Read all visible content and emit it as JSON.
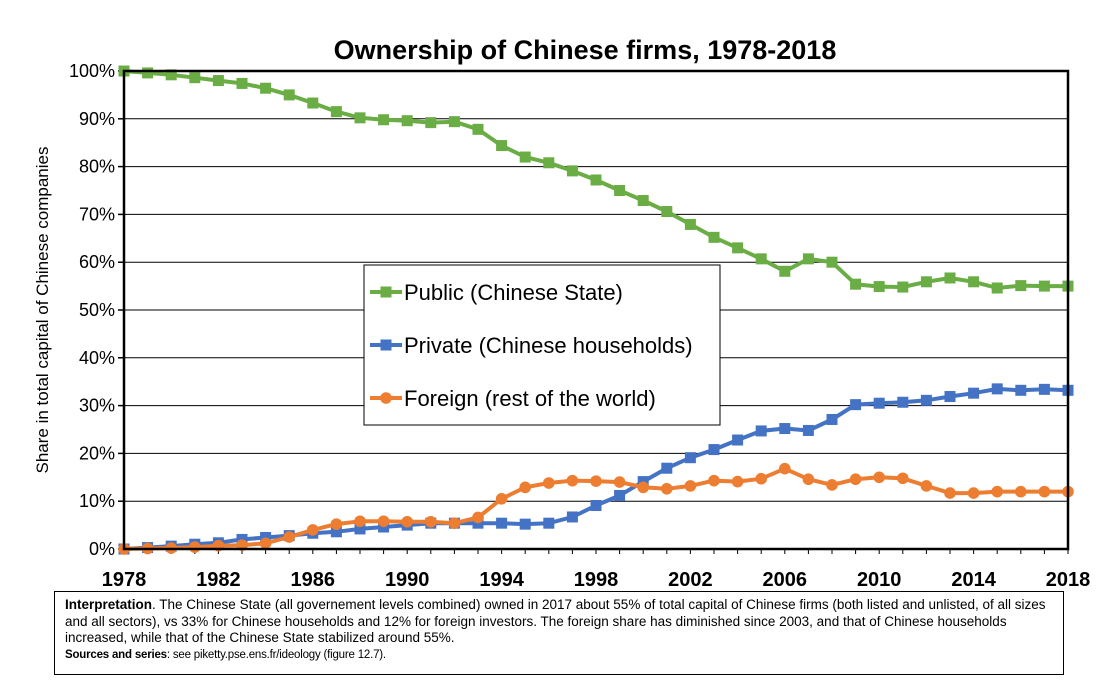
{
  "chart_data": {
    "type": "line",
    "title": "Ownership of Chinese firms, 1978-2018",
    "ylabel": "Share in total capital of Chinese companies",
    "xlabel": "",
    "x": [
      1978,
      1979,
      1980,
      1981,
      1982,
      1983,
      1984,
      1985,
      1986,
      1987,
      1988,
      1989,
      1990,
      1991,
      1992,
      1993,
      1994,
      1995,
      1996,
      1997,
      1998,
      1999,
      2000,
      2001,
      2002,
      2003,
      2004,
      2005,
      2006,
      2007,
      2008,
      2009,
      2010,
      2011,
      2012,
      2013,
      2014,
      2015,
      2016,
      2017,
      2018
    ],
    "xticks": [
      "1978",
      "1982",
      "1986",
      "1990",
      "1994",
      "1998",
      "2002",
      "2006",
      "2010",
      "2014",
      "2018"
    ],
    "yticks": [
      "0%",
      "10%",
      "20%",
      "30%",
      "40%",
      "50%",
      "60%",
      "70%",
      "80%",
      "90%",
      "100%"
    ],
    "xlim": [
      1978,
      2018
    ],
    "ylim": [
      0,
      100
    ],
    "grid": "horizontal",
    "legend_position": "center",
    "series": [
      {
        "name": "Public (Chinese State)",
        "color": "#6aad45",
        "marker": "square",
        "values": [
          100,
          99.6,
          99.2,
          98.6,
          98,
          97.4,
          96.4,
          95,
          93.3,
          91.5,
          90.2,
          89.8,
          89.6,
          89.2,
          89.4,
          87.8,
          84.4,
          82,
          80.8,
          79.1,
          77.2,
          75,
          72.9,
          70.6,
          67.9,
          65.2,
          63,
          60.7,
          58.1,
          60.7,
          60,
          55.4,
          54.9,
          54.8,
          55.9,
          56.7,
          55.9,
          54.6,
          55.1,
          55,
          55
        ]
      },
      {
        "name": "Private (Chinese households)",
        "color": "#4472c4",
        "marker": "square",
        "values": [
          0,
          0.3,
          0.6,
          1,
          1.3,
          2,
          2.4,
          2.8,
          3.3,
          3.6,
          4.2,
          4.6,
          5,
          5.4,
          5.4,
          5.4,
          5.4,
          5.2,
          5.4,
          6.7,
          9.1,
          11.2,
          14.1,
          16.9,
          19.1,
          20.8,
          22.8,
          24.7,
          25.2,
          24.8,
          27.1,
          30.2,
          30.5,
          30.7,
          31.1,
          31.9,
          32.6,
          33.5,
          33.2,
          33.4,
          33.2
        ]
      },
      {
        "name": "Foreign (rest of the world)",
        "color": "#ed7d31",
        "marker": "circle",
        "values": [
          0,
          0.1,
          0.2,
          0.4,
          0.7,
          0.8,
          1.2,
          2.5,
          4,
          5.2,
          5.8,
          5.8,
          5.7,
          5.7,
          5.4,
          6.6,
          10.5,
          12.9,
          13.8,
          14.3,
          14.2,
          14,
          12.9,
          12.6,
          13.2,
          14.3,
          14.1,
          14.7,
          16.8,
          14.6,
          13.4,
          14.6,
          15,
          14.8,
          13.2,
          11.7,
          11.7,
          12,
          12,
          12,
          12
        ]
      }
    ]
  },
  "note": {
    "interpretation_label": "Interpretation",
    "interpretation_text": ". The Chinese State (all governement levels combined) owned in 2017 about 55% of total capital of Chinese firms (both listed and unlisted, of all sizes and all sectors), vs 33% for Chinese households and 12% for foreign investors. The foreign share has diminished since 2003, and that of Chinese households increased, while that of the Chinese State stabilized around 55%.",
    "sources_label": "Sources and series",
    "sources_text": ": see piketty.pse.ens.fr/ideology (figure 12.7)."
  }
}
